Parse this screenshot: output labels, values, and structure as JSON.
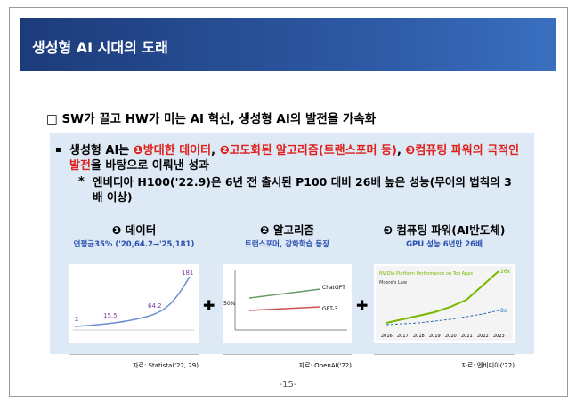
{
  "header": {
    "title": "생성형 AI 시대의 도래"
  },
  "heading": "□ SW가 끌고 HW가 미는 AI 혁신, 생성형 AI의 발전을 가속화",
  "bullet": {
    "segments": [
      {
        "text": "생성형 AI는 ",
        "red": false
      },
      {
        "text": "❶방대한 데이터",
        "red": true
      },
      {
        "text": ", ",
        "red": false
      },
      {
        "text": "❷고도화된 알고리즘(트랜스포머 등)",
        "red": true
      },
      {
        "text": ", ",
        "red": false
      },
      {
        "text": "❸컴퓨팅 파워의 극적인 발전",
        "red": true
      },
      {
        "text": "을 바탕으로 이뤄낸 성과",
        "red": false
      }
    ],
    "note": "엔비디아 H100('22.9)은 6년 전 출시된 P100 대비 26배 높은 성능(무어의 법칙의 3배 이상)"
  },
  "panels": [
    {
      "title": "❶ 데이터",
      "subtitle": "연평균35%  ('20,64.2→'25,181)",
      "source": "자료: Statista('22, 29)",
      "chart": {
        "labels": [
          "2",
          "15.5",
          "64.2",
          "181"
        ]
      }
    },
    {
      "title": "❷ 알고리즘",
      "subtitle": "트랜스포머, 강화학습 등장",
      "source": "자료: OpenAI('22)",
      "chart": {
        "labels": [
          "ChatGPT",
          "GPT-3",
          "50%"
        ]
      }
    },
    {
      "title": "❸ 컴퓨팅 파워(AI반도체)",
      "subtitle": "GPU 성능 6년만 26배",
      "source": "자료: 엔비디아('22)",
      "chart": {
        "labels": [
          "NVIDIA Platform Performance on Top Apps",
          "Moore's Law",
          "26x",
          "8x"
        ],
        "years": [
          "2016",
          "2017",
          "2018",
          "2019",
          "2020",
          "2021",
          "2022",
          "2023"
        ]
      }
    }
  ],
  "page": "-15-"
}
